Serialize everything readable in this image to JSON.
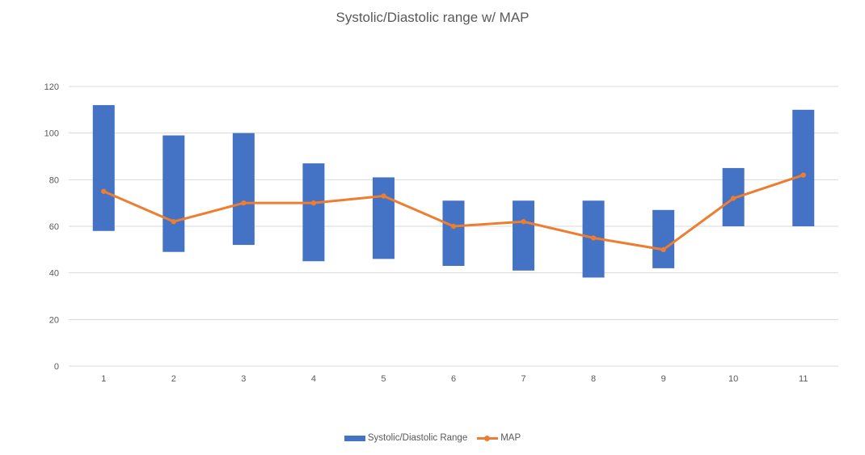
{
  "chart_data": {
    "type": "bar",
    "title": "Systolic/Diastolic range w/ MAP",
    "xlabel": "",
    "ylabel": "",
    "categories": [
      "1",
      "2",
      "3",
      "4",
      "5",
      "6",
      "7",
      "8",
      "9",
      "10",
      "11"
    ],
    "ylim": [
      0,
      120
    ],
    "yticks": [
      0,
      20,
      40,
      60,
      80,
      100,
      120
    ],
    "yticks_labels": [
      "0",
      "20",
      "40",
      "60",
      "80",
      "100",
      "120"
    ],
    "grid": true,
    "legend_position": "bottom",
    "series": [
      {
        "name": "Systolic/Diastolic Range",
        "kind": "floating-bar",
        "color": "#4472C4",
        "low": [
          58,
          49,
          52,
          45,
          46,
          43,
          41,
          38,
          42,
          60,
          60
        ],
        "high": [
          112,
          99,
          100,
          87,
          81,
          71,
          71,
          71,
          67,
          85,
          110
        ]
      },
      {
        "name": "MAP",
        "kind": "line-with-markers",
        "color": "#ED7D31",
        "values": [
          75,
          62,
          70,
          70,
          73,
          60,
          62,
          55,
          50,
          72,
          82
        ]
      }
    ]
  }
}
